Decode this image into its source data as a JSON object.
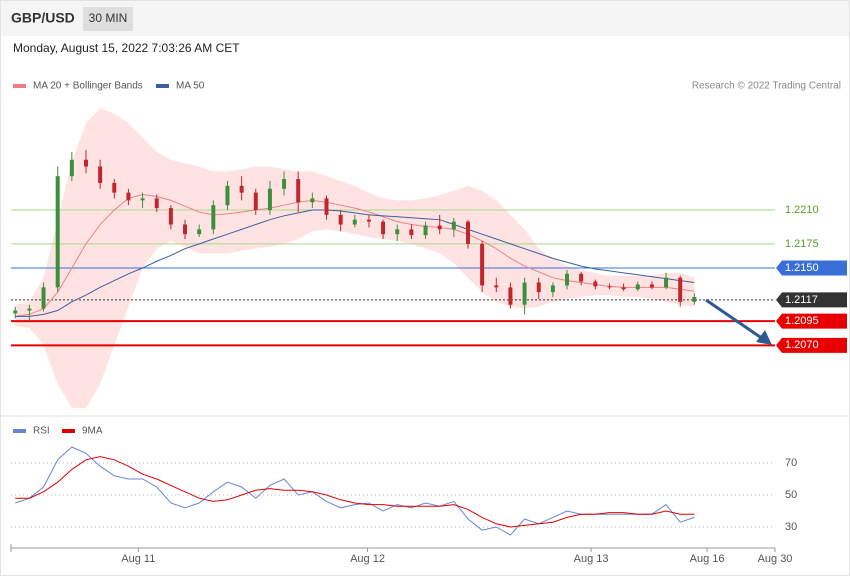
{
  "header": {
    "symbol": "GBP/USD",
    "timeframe": "30 MIN",
    "date": "Monday, August 15, 2022 7:03:26 AM CET"
  },
  "chart_data": [
    {
      "type": "candlestick",
      "source": "Research © 2022 Trading Central",
      "up_color": "#3c8f3c",
      "down_color": "#c0272d",
      "open": [
        1.2103,
        1.2106,
        1.2108,
        1.213,
        1.2245,
        1.2262,
        1.2255,
        1.2238,
        1.2228,
        1.222,
        1.2222,
        1.2212,
        1.2195,
        1.2185,
        1.219,
        1.2215,
        1.2235,
        1.2228,
        1.221,
        1.2232,
        1.2242,
        1.2218,
        1.2222,
        1.2205,
        1.2195,
        1.22,
        1.2198,
        1.2185,
        1.219,
        1.2184,
        1.2194,
        1.219,
        1.2198,
        1.2175,
        1.2132,
        1.213,
        1.2112,
        1.2135,
        1.2125,
        1.2132,
        1.2144,
        1.2136,
        1.2131,
        1.213,
        1.2128,
        1.2133,
        1.213,
        1.214,
        1.2115
      ],
      "high": [
        1.211,
        1.2112,
        1.2135,
        1.2255,
        1.227,
        1.2272,
        1.2262,
        1.2242,
        1.2232,
        1.2228,
        1.2226,
        1.2215,
        1.22,
        1.2195,
        1.222,
        1.224,
        1.2245,
        1.2232,
        1.224,
        1.225,
        1.225,
        1.2228,
        1.2225,
        1.221,
        1.2205,
        1.2205,
        1.22,
        1.2195,
        1.2195,
        1.2198,
        1.2205,
        1.2202,
        1.22,
        1.2178,
        1.214,
        1.2135,
        1.214,
        1.214,
        1.2135,
        1.2148,
        1.2146,
        1.2138,
        1.2134,
        1.2134,
        1.2136,
        1.2136,
        1.2145,
        1.2142,
        1.2124
      ],
      "low": [
        1.2098,
        1.2095,
        1.2105,
        1.2125,
        1.224,
        1.2248,
        1.2232,
        1.2222,
        1.2215,
        1.2212,
        1.2208,
        1.219,
        1.218,
        1.2182,
        1.2185,
        1.221,
        1.222,
        1.2205,
        1.2205,
        1.2225,
        1.2208,
        1.2212,
        1.22,
        1.2188,
        1.2192,
        1.2192,
        1.218,
        1.2178,
        1.218,
        1.218,
        1.2185,
        1.2182,
        1.217,
        1.2125,
        1.2125,
        1.2108,
        1.2102,
        1.2118,
        1.212,
        1.2128,
        1.2132,
        1.2128,
        1.2128,
        1.2126,
        1.2126,
        1.2128,
        1.2128,
        1.211,
        1.2112
      ],
      "close": [
        1.2106,
        1.2108,
        1.213,
        1.2245,
        1.2262,
        1.2255,
        1.2238,
        1.2228,
        1.222,
        1.2222,
        1.2212,
        1.2195,
        1.2185,
        1.219,
        1.2215,
        1.2235,
        1.2228,
        1.221,
        1.2232,
        1.2242,
        1.2218,
        1.2222,
        1.2205,
        1.2195,
        1.22,
        1.2198,
        1.2185,
        1.219,
        1.2184,
        1.2194,
        1.219,
        1.2198,
        1.2175,
        1.2132,
        1.213,
        1.2112,
        1.2135,
        1.2125,
        1.2132,
        1.2144,
        1.2136,
        1.2131,
        1.213,
        1.2128,
        1.2133,
        1.213,
        1.214,
        1.2115,
        1.212
      ],
      "series": [
        {
          "name": "MA 20 + Bollinger Bands",
          "color": "#f08080",
          "band_color": "#ffe3e3",
          "values": [
            1.21,
            1.2102,
            1.2108,
            1.2125,
            1.215,
            1.2175,
            1.2195,
            1.221,
            1.2222,
            1.2226,
            1.2224,
            1.222,
            1.2214,
            1.2208,
            1.2205,
            1.2206,
            1.2208,
            1.221,
            1.2212,
            1.2215,
            1.2218,
            1.222,
            1.2218,
            1.2215,
            1.2212,
            1.2208,
            1.2203,
            1.2198,
            1.2195,
            1.2193,
            1.2192,
            1.219,
            1.2185,
            1.2178,
            1.217,
            1.216,
            1.2152,
            1.2146,
            1.214,
            1.2137,
            1.2135,
            1.2133,
            1.2131,
            1.213,
            1.213,
            1.213,
            1.213,
            1.2128,
            1.2126
          ],
          "band_upper": [
            1.2112,
            1.2115,
            1.214,
            1.22,
            1.226,
            1.23,
            1.2315,
            1.231,
            1.23,
            1.2285,
            1.227,
            1.2262,
            1.2258,
            1.2255,
            1.225,
            1.225,
            1.2252,
            1.2255,
            1.2255,
            1.2252,
            1.225,
            1.225,
            1.2245,
            1.224,
            1.2235,
            1.2228,
            1.2222,
            1.222,
            1.222,
            1.2222,
            1.2225,
            1.223,
            1.2235,
            1.223,
            1.222,
            1.2205,
            1.219,
            1.217,
            1.216,
            1.2152,
            1.2148,
            1.2145,
            1.2142,
            1.2142,
            1.2142,
            1.2142,
            1.2145,
            1.2145,
            1.214
          ],
          "band_lower": [
            1.209,
            1.2088,
            1.207,
            1.203,
            1.2005,
            1.2005,
            1.203,
            1.207,
            1.211,
            1.215,
            1.217,
            1.2178,
            1.2172,
            1.2165,
            1.2165,
            1.2165,
            1.2168,
            1.217,
            1.2172,
            1.2175,
            1.218,
            1.2188,
            1.219,
            1.2188,
            1.2185,
            1.2182,
            1.218,
            1.2178,
            1.2175,
            1.217,
            1.2165,
            1.2155,
            1.214,
            1.2125,
            1.2115,
            1.211,
            1.2108,
            1.211,
            1.2115,
            1.2118,
            1.212,
            1.2122,
            1.2122,
            1.212,
            1.212,
            1.2118,
            1.2115,
            1.2112,
            1.211
          ]
        },
        {
          "name": "MA 50",
          "color": "#3a5fa0",
          "values": [
            1.21,
            1.21,
            1.2102,
            1.2106,
            1.2115,
            1.2122,
            1.213,
            1.2137,
            1.2144,
            1.215,
            1.2157,
            1.2163,
            1.217,
            1.2175,
            1.218,
            1.2185,
            1.219,
            1.2195,
            1.22,
            1.2204,
            1.2207,
            1.221,
            1.221,
            1.2209,
            1.2207,
            1.2205,
            1.2204,
            1.2203,
            1.2202,
            1.2201,
            1.22,
            1.2195,
            1.219,
            1.2185,
            1.218,
            1.2175,
            1.217,
            1.2165,
            1.216,
            1.2156,
            1.2152,
            1.2149,
            1.2147,
            1.2145,
            1.2143,
            1.2141,
            1.2139,
            1.2137,
            1.2135
          ]
        }
      ],
      "levels": [
        {
          "value": 1.221,
          "label": "1.2210",
          "color": "#a8d88a",
          "text_color": "#5a9e2a",
          "style": "solid",
          "boxed": false
        },
        {
          "value": 1.2175,
          "label": "1.2175",
          "color": "#a8d88a",
          "text_color": "#5a9e2a",
          "style": "solid",
          "boxed": false
        },
        {
          "value": 1.215,
          "label": "1.2150",
          "color": "#3a6fd8",
          "text_color": "#ffffff",
          "style": "solid",
          "boxed": true
        },
        {
          "value": 1.2117,
          "label": "1.2117",
          "color": "#333333",
          "text_color": "#ffffff",
          "style": "dotted",
          "boxed": true
        },
        {
          "value": 1.2095,
          "label": "1.2095",
          "color": "#e80000",
          "text_color": "#ffffff",
          "style": "solid",
          "boxed": true
        },
        {
          "value": 1.207,
          "label": "1.2070",
          "color": "#e80000",
          "text_color": "#ffffff",
          "style": "solid",
          "boxed": true
        }
      ],
      "xlim": [
        -0.3,
        53.7
      ],
      "ylim": [
        1.2,
        1.2329
      ]
    },
    {
      "type": "line",
      "series": [
        {
          "name": "RSI",
          "color": "#6a85d8",
          "values": [
            45,
            48,
            55,
            72,
            80,
            76,
            68,
            62,
            60,
            60,
            55,
            45,
            42,
            45,
            52,
            58,
            55,
            48,
            56,
            60,
            50,
            52,
            46,
            42,
            44,
            45,
            40,
            44,
            42,
            45,
            43,
            46,
            35,
            28,
            30,
            25,
            35,
            32,
            36,
            40,
            38,
            38,
            38,
            38,
            38,
            38,
            44,
            33,
            36
          ]
        },
        {
          "name": "9MA",
          "color": "#e00000",
          "values": [
            48,
            48,
            52,
            58,
            66,
            72,
            74,
            72,
            68,
            63,
            60,
            56,
            52,
            48,
            46,
            47,
            50,
            53,
            54,
            53,
            53,
            52,
            50,
            47,
            45,
            44,
            44,
            43,
            43,
            43,
            43,
            44,
            41,
            36,
            32,
            30,
            31,
            32,
            33,
            36,
            38,
            38,
            39,
            39,
            38,
            38,
            40,
            38,
            38
          ]
        }
      ],
      "xlim": [
        -0.3,
        53.7
      ],
      "ylim": [
        20,
        85
      ],
      "yticks": [
        30,
        50,
        70
      ],
      "grid": true,
      "xticks": [
        {
          "value": 8.7,
          "label": "Aug 11"
        },
        {
          "value": 24.9,
          "label": "Aug 12"
        },
        {
          "value": 40.7,
          "label": "Aug 13"
        },
        {
          "value": 48.9,
          "label": "Aug 16"
        },
        {
          "value": 53.7,
          "label": "Aug 30"
        }
      ]
    }
  ]
}
